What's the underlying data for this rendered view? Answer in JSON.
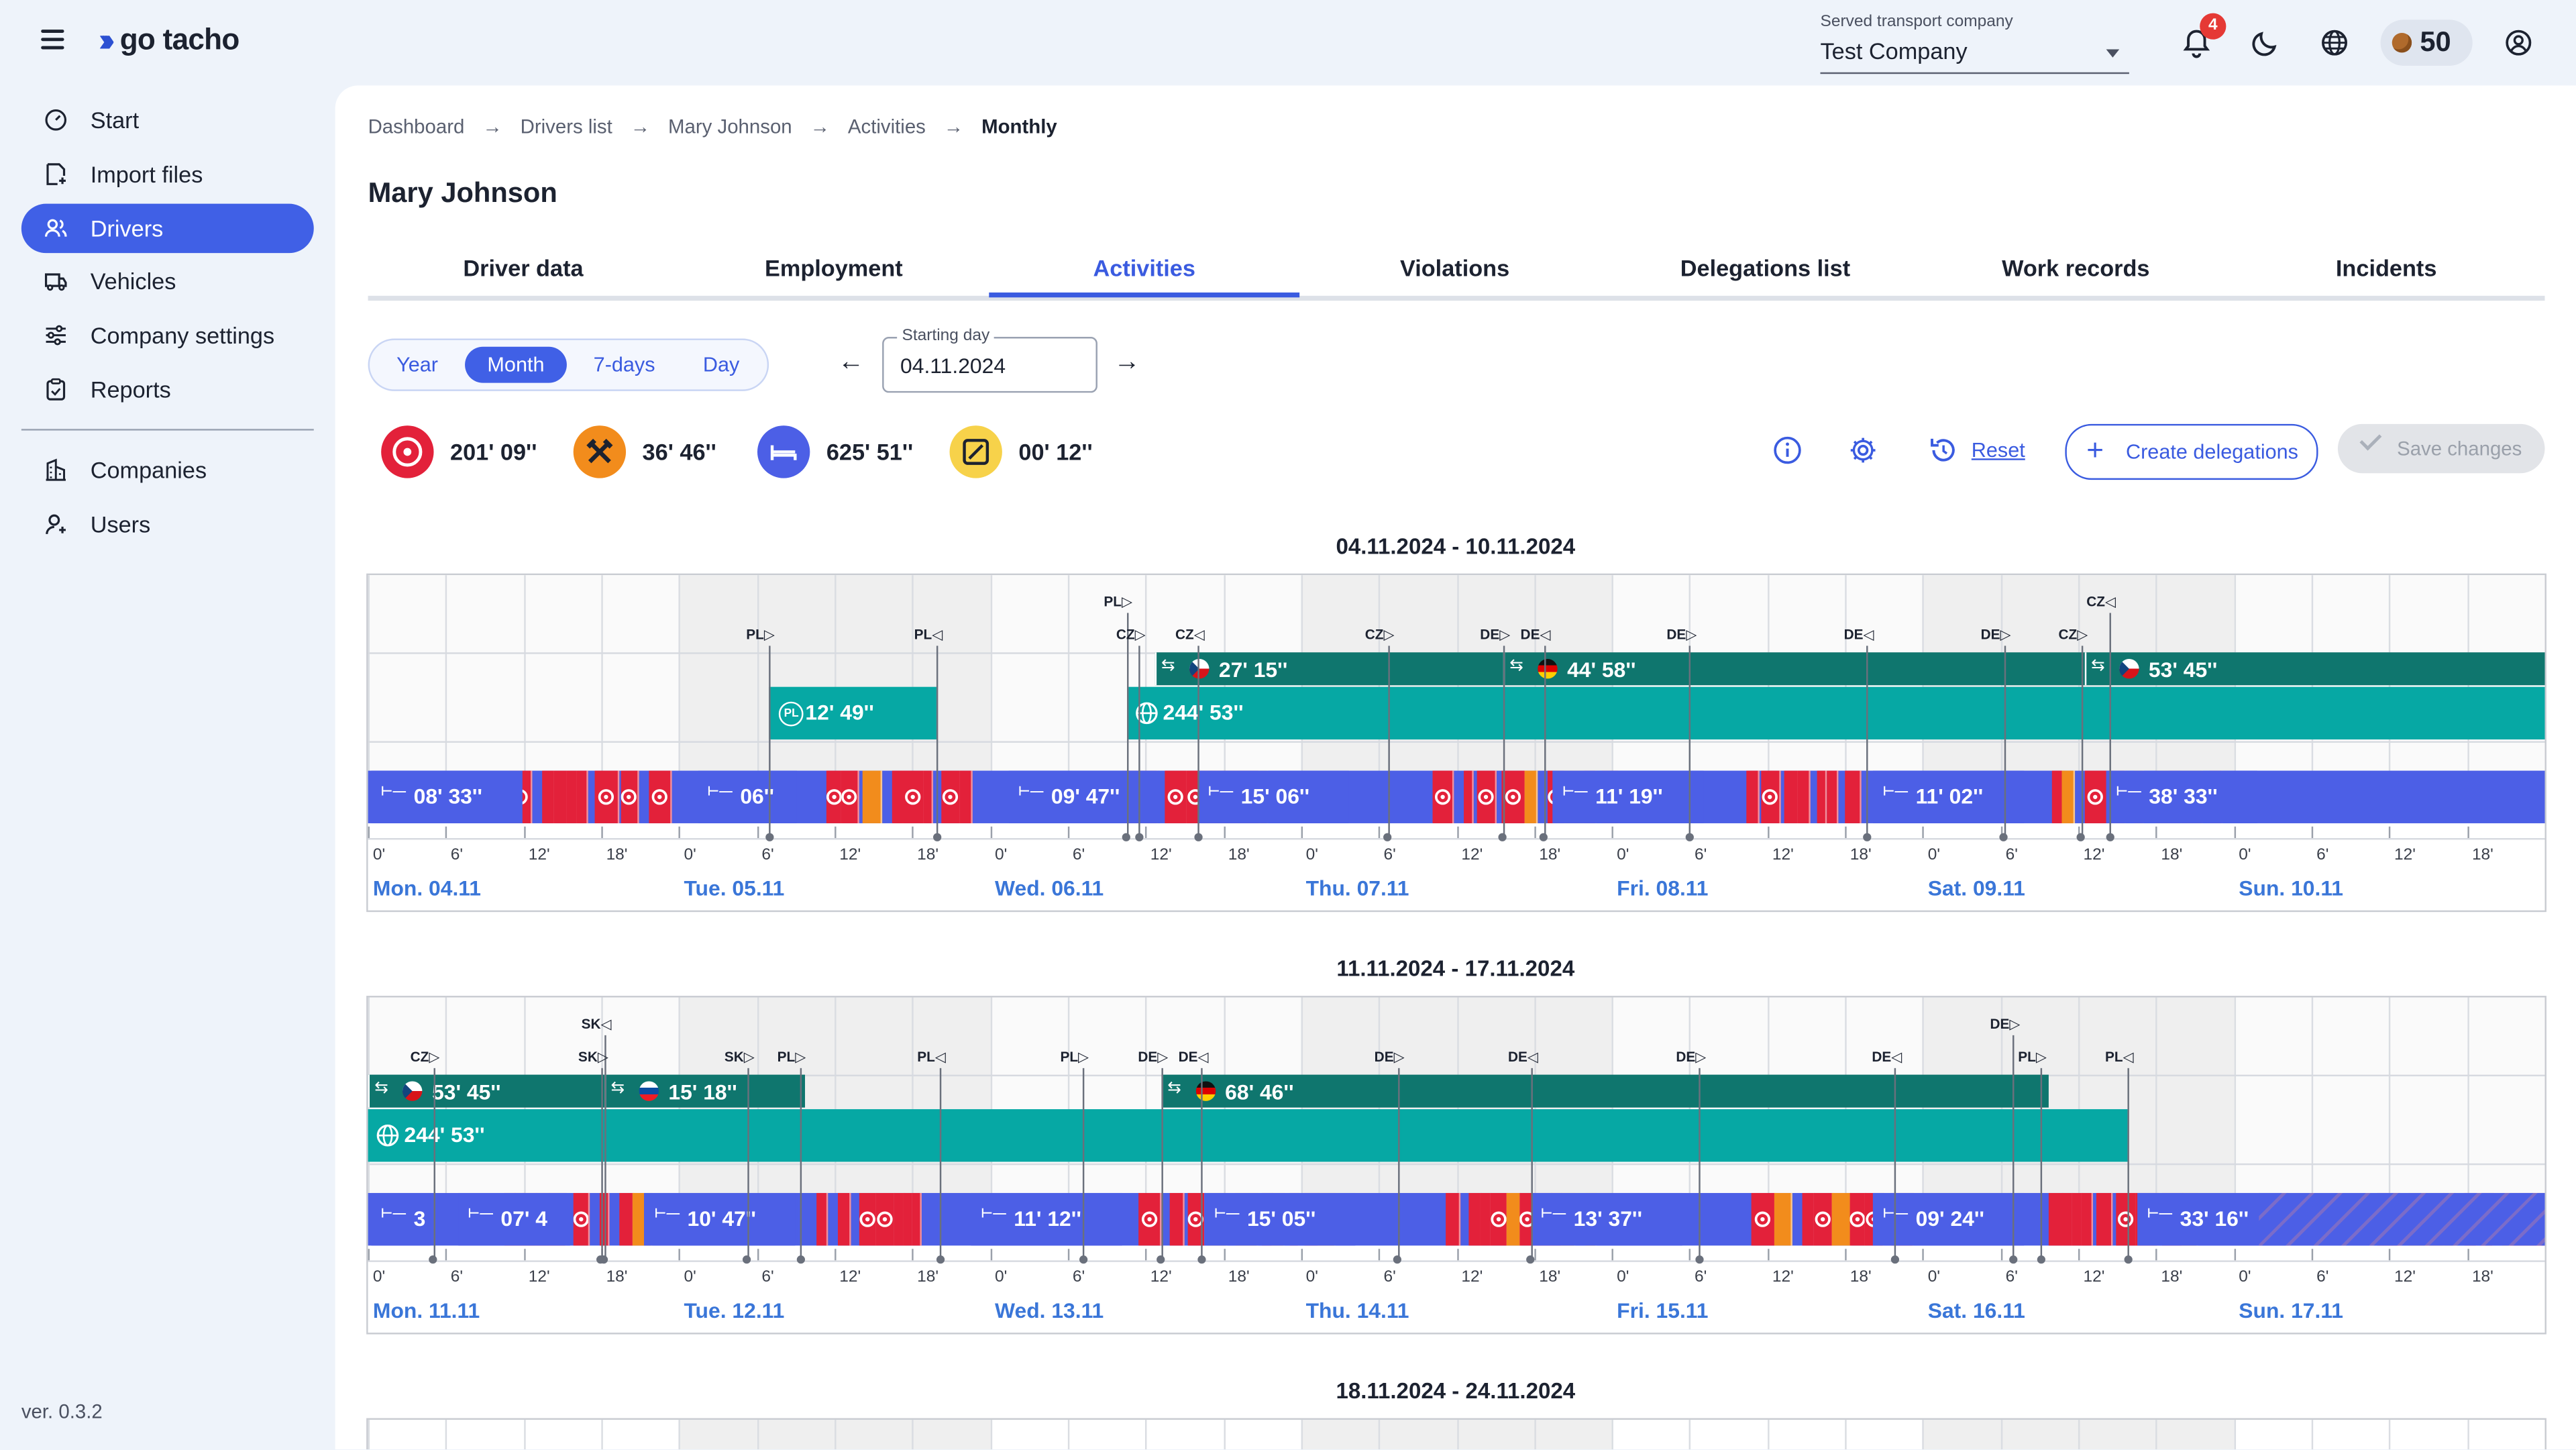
{
  "app": {
    "name": "go tacho",
    "version": "ver. 0.3.2"
  },
  "header": {
    "company_label": "Served transport company",
    "company_value": "Test Company",
    "notification_count": "4",
    "credits": "50"
  },
  "sidebar": {
    "items": [
      {
        "label": "Start",
        "icon": "speedometer-icon"
      },
      {
        "label": "Import files",
        "icon": "file-import-icon"
      },
      {
        "label": "Drivers",
        "icon": "users-icon",
        "active": true
      },
      {
        "label": "Vehicles",
        "icon": "truck-icon"
      },
      {
        "label": "Company settings",
        "icon": "sliders-icon"
      },
      {
        "label": "Reports",
        "icon": "clipboard-icon"
      }
    ],
    "items2": [
      {
        "label": "Companies",
        "icon": "building-icon"
      },
      {
        "label": "Users",
        "icon": "user-icon"
      }
    ]
  },
  "breadcrumb": [
    "Dashboard",
    "Drivers list",
    "Mary Johnson",
    "Activities",
    "Monthly"
  ],
  "page_title": "Mary Johnson",
  "tabs": [
    "Driver data",
    "Employment",
    "Activities",
    "Violations",
    "Delegations list",
    "Work records",
    "Incidents"
  ],
  "active_tab": 2,
  "period": {
    "options": [
      "Year",
      "Month",
      "7-days",
      "Day"
    ],
    "active": 1
  },
  "starting_day": {
    "label": "Starting day",
    "value": "04.11.2024"
  },
  "totals": [
    {
      "type": "driving",
      "value": "201' 09''",
      "color": "#e3213a"
    },
    {
      "type": "work",
      "value": "36' 46''",
      "color": "#f28c1c"
    },
    {
      "type": "rest",
      "value": "625' 51''",
      "color": "#4c5fe6"
    },
    {
      "type": "availability",
      "value": "00' 12''",
      "color": "#f7d24a"
    }
  ],
  "actions": {
    "reset": "Reset",
    "create": "Create delegations",
    "save": "Save changes"
  },
  "tick_labels": [
    "0'",
    "6'",
    "12'",
    "18'"
  ],
  "colors": {
    "driving": "#e3213a",
    "rest": "#4c5fe6",
    "work": "#f28c1c",
    "delegation": "#0f766e",
    "trip": "#06a8a4",
    "accent": "#3a5be0"
  },
  "weeks": [
    {
      "title": "04.11.2024 - 10.11.2024",
      "days": [
        "Mon. 04.11",
        "Tue. 05.11",
        "Wed. 06.11",
        "Thu. 07.11",
        "Fri. 08.11",
        "Sat. 09.11",
        "Sun. 10.11"
      ],
      "gray_days": [
        1,
        3,
        5
      ],
      "flags": [
        {
          "code": "PL",
          "dir": "right",
          "pos": 1.29,
          "row": 1
        },
        {
          "code": "PL",
          "dir": "left",
          "pos": 1.83,
          "row": 1
        },
        {
          "code": "PL",
          "dir": "right",
          "pos": 2.44,
          "row": 0
        },
        {
          "code": "CZ",
          "dir": "right",
          "pos": 2.48,
          "row": 1
        },
        {
          "code": "CZ",
          "dir": "left",
          "pos": 2.67,
          "row": 1
        },
        {
          "code": "CZ",
          "dir": "right",
          "pos": 3.28,
          "row": 1
        },
        {
          "code": "DE",
          "dir": "right",
          "pos": 3.65,
          "row": 1
        },
        {
          "code": "DE",
          "dir": "left",
          "pos": 3.78,
          "row": 1
        },
        {
          "code": "DE",
          "dir": "right",
          "pos": 4.25,
          "row": 1
        },
        {
          "code": "DE",
          "dir": "left",
          "pos": 4.82,
          "row": 1
        },
        {
          "code": "DE",
          "dir": "right",
          "pos": 5.26,
          "row": 1
        },
        {
          "code": "CZ",
          "dir": "right",
          "pos": 5.51,
          "row": 1
        },
        {
          "code": "CZ",
          "dir": "left",
          "pos": 5.6,
          "row": 0
        }
      ],
      "delegations": [
        {
          "label": "27' 15''",
          "flag": "cz",
          "from": 2.53,
          "to": 3.65
        },
        {
          "label": "44' 58''",
          "flag": "de",
          "from": 3.65,
          "to": 5.52
        },
        {
          "label": "53' 45''",
          "flag": "cz",
          "from": 5.52,
          "to": 7.0
        }
      ],
      "trips": [
        {
          "label": "12' 49''",
          "kind": "PL",
          "from": 1.29,
          "to": 1.83
        },
        {
          "label": "244' 53''",
          "kind": "globe",
          "from": 2.44,
          "to": 7.0
        }
      ],
      "labels": [
        {
          "text": "08' 33''",
          "type": "rest",
          "at": 0.02
        },
        {
          "text": "06''",
          "type": "rest",
          "at": 1.07
        },
        {
          "text": "09' 47''",
          "type": "rest",
          "at": 2.07
        },
        {
          "text": "15' 06''",
          "type": "rest",
          "at": 2.68
        },
        {
          "text": "11' 19''",
          "type": "rest",
          "at": 3.82
        },
        {
          "text": "11' 02''",
          "type": "rest",
          "at": 4.85
        },
        {
          "text": "38' 33''",
          "type": "rest",
          "at": 5.6
        }
      ]
    },
    {
      "title": "11.11.2024 - 17.11.2024",
      "days": [
        "Mon. 11.11",
        "Tue. 12.11",
        "Wed. 13.11",
        "Thu. 14.11",
        "Fri. 15.11",
        "Sat. 16.11",
        "Sun. 17.11"
      ],
      "gray_days": [
        1,
        3,
        5
      ],
      "flags": [
        {
          "code": "SK",
          "dir": "left",
          "pos": 0.76,
          "row": 0
        },
        {
          "code": "CZ",
          "dir": "right",
          "pos": 0.21,
          "row": 1
        },
        {
          "code": "SK",
          "dir": "right",
          "pos": 0.75,
          "row": 1
        },
        {
          "code": "SK",
          "dir": "right",
          "pos": 1.22,
          "row": 1
        },
        {
          "code": "PL",
          "dir": "right",
          "pos": 1.39,
          "row": 1
        },
        {
          "code": "PL",
          "dir": "left",
          "pos": 1.84,
          "row": 1
        },
        {
          "code": "PL",
          "dir": "right",
          "pos": 2.3,
          "row": 1
        },
        {
          "code": "DE",
          "dir": "right",
          "pos": 2.55,
          "row": 1
        },
        {
          "code": "DE",
          "dir": "left",
          "pos": 2.68,
          "row": 1
        },
        {
          "code": "DE",
          "dir": "right",
          "pos": 3.31,
          "row": 1
        },
        {
          "code": "DE",
          "dir": "left",
          "pos": 3.74,
          "row": 1
        },
        {
          "code": "DE",
          "dir": "right",
          "pos": 4.28,
          "row": 1
        },
        {
          "code": "DE",
          "dir": "left",
          "pos": 4.91,
          "row": 1
        },
        {
          "code": "DE",
          "dir": "right",
          "pos": 5.29,
          "row": 0
        },
        {
          "code": "PL",
          "dir": "right",
          "pos": 5.38,
          "row": 1
        },
        {
          "code": "PL",
          "dir": "left",
          "pos": 5.66,
          "row": 1
        }
      ],
      "delegations": [
        {
          "label": "53' 45''",
          "flag": "cz",
          "from": 0.0,
          "to": 0.76
        },
        {
          "label": "15' 18''",
          "flag": "sk",
          "from": 0.76,
          "to": 1.4
        },
        {
          "label": "68' 46''",
          "flag": "de",
          "from": 2.55,
          "to": 5.4
        }
      ],
      "trips": [
        {
          "label": "244' 53''",
          "kind": "globe",
          "from": 0.0,
          "to": 5.66
        }
      ],
      "labels": [
        {
          "text": "3",
          "type": "rest",
          "at": 0.02
        },
        {
          "text": "07' 4",
          "type": "rest",
          "at": 0.3
        },
        {
          "text": "10' 47''",
          "type": "rest",
          "at": 0.9
        },
        {
          "text": "11' 12''",
          "type": "rest",
          "at": 1.95
        },
        {
          "text": "15' 05''",
          "type": "rest",
          "at": 2.7
        },
        {
          "text": "13' 37''",
          "type": "rest",
          "at": 3.75
        },
        {
          "text": "09' 24''",
          "type": "rest",
          "at": 4.85
        },
        {
          "text": "33' 16''",
          "type": "rest",
          "at": 5.7
        }
      ]
    },
    {
      "title": "18.11.2024 - 24.11.2024"
    }
  ]
}
